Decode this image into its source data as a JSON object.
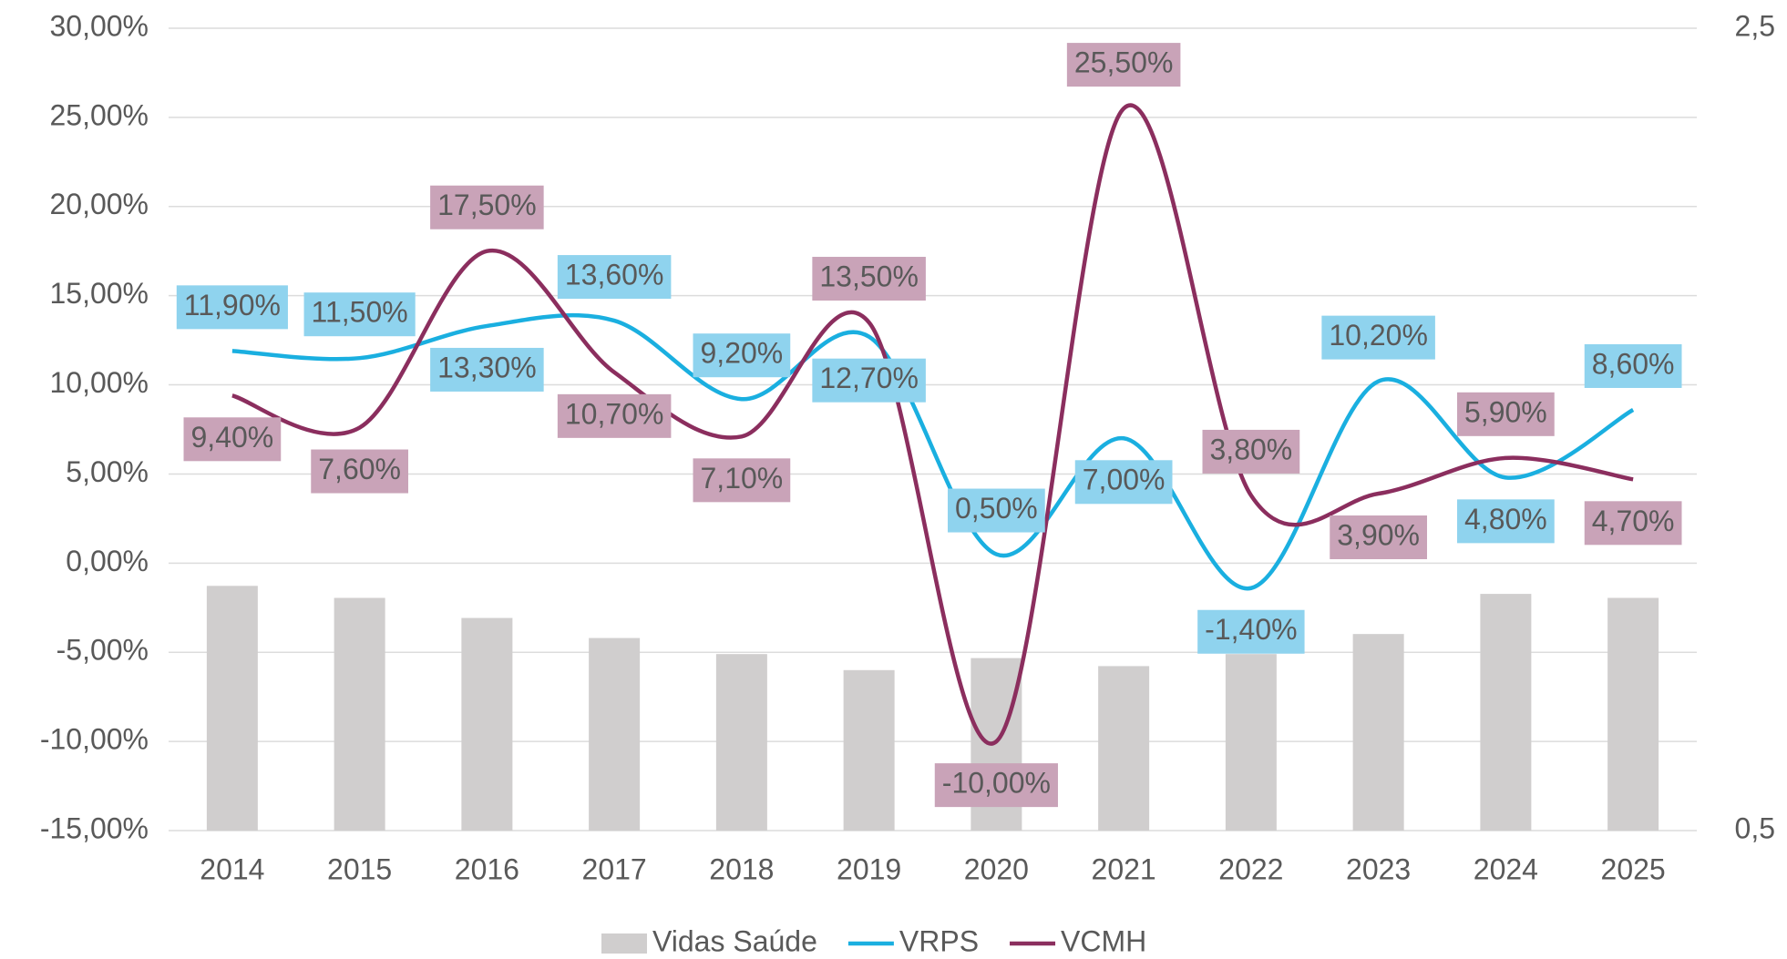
{
  "chart_data": {
    "type": "bar-line",
    "categories": [
      "2014",
      "2015",
      "2016",
      "2017",
      "2018",
      "2019",
      "2020",
      "2021",
      "2022",
      "2023",
      "2024",
      "2025"
    ],
    "series": [
      {
        "name": "Vidas Saúde",
        "type": "bar",
        "axis": "y2",
        "color": "#d0cece",
        "values": [
          1.11,
          1.08,
          1.03,
          0.98,
          0.94,
          0.9,
          0.93,
          0.91,
          0.94,
          0.99,
          1.09,
          1.08
        ]
      },
      {
        "name": "VRPS",
        "type": "line",
        "color": "#1aafe0",
        "values": [
          11.9,
          11.5,
          13.3,
          13.6,
          9.2,
          12.7,
          0.5,
          7.0,
          -1.4,
          10.2,
          4.8,
          8.6
        ],
        "value_labels": [
          "11,90%",
          "11,50%",
          "13,30%",
          "13,60%",
          "9,20%",
          "12,70%",
          "0,50%",
          "7,00%",
          "-1,40%",
          "10,20%",
          "4,80%",
          "8,60%"
        ],
        "label_color": "#8fd3ee"
      },
      {
        "name": "VCMH",
        "type": "line",
        "color": "#8b2e5e",
        "values": [
          9.4,
          7.6,
          17.5,
          10.7,
          7.1,
          13.5,
          -10.0,
          25.5,
          3.8,
          3.9,
          5.9,
          4.7
        ],
        "value_labels": [
          "9,40%",
          "7,60%",
          "17,50%",
          "10,70%",
          "7,10%",
          "13,50%",
          "-10,00%",
          "25,50%",
          "3,80%",
          "3,90%",
          "5,90%",
          "4,70%"
        ],
        "label_color": "#c9a3b8"
      }
    ],
    "ylim": [
      -15,
      30
    ],
    "yticks": [
      {
        "value": -15,
        "label": "-15,00%"
      },
      {
        "value": -10,
        "label": "-10,00%"
      },
      {
        "value": -5,
        "label": "-5,00%"
      },
      {
        "value": 0,
        "label": "0,00%"
      },
      {
        "value": 5,
        "label": "5,00%"
      },
      {
        "value": 10,
        "label": "10,00%"
      },
      {
        "value": 15,
        "label": "15,00%"
      },
      {
        "value": 20,
        "label": "20,00%"
      },
      {
        "value": 25,
        "label": "25,00%"
      },
      {
        "value": 30,
        "label": "30,00%"
      }
    ],
    "y2lim": [
      0.5,
      2.5
    ],
    "y2ticks": [
      {
        "value": 0.5,
        "label": "0,5"
      },
      {
        "value": 2.5,
        "label": "2,5"
      }
    ],
    "grid": true,
    "legend": "bottom"
  }
}
